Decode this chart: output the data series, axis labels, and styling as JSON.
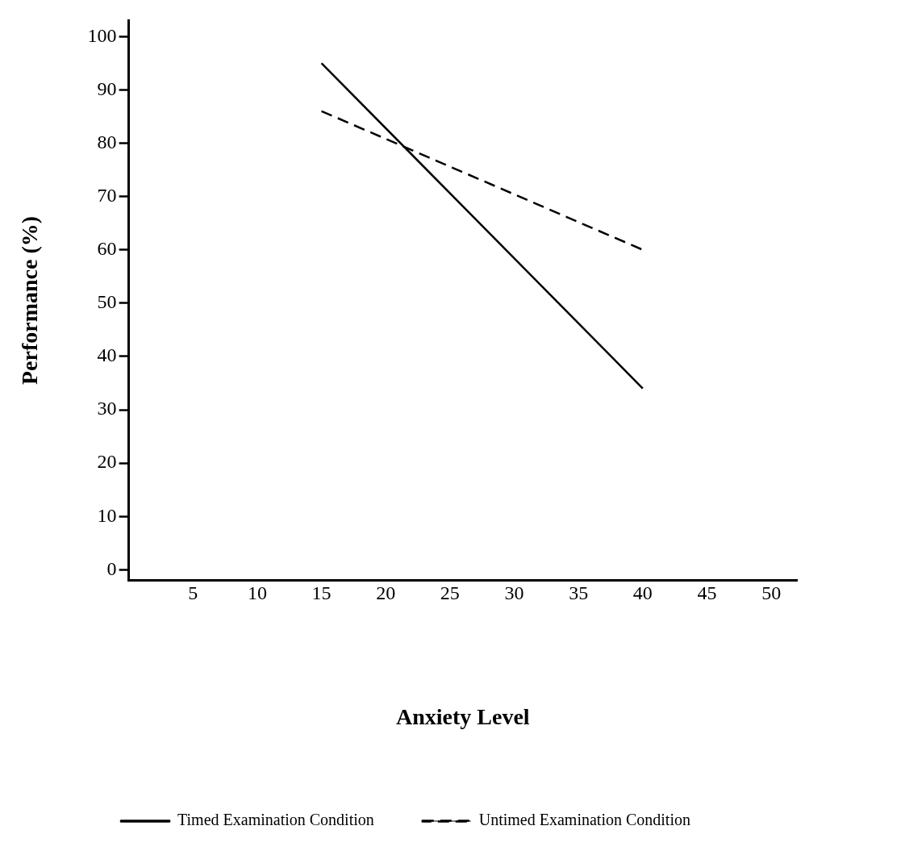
{
  "chart_data": {
    "type": "line",
    "xlabel": "Anxiety Level",
    "ylabel": "Performance (%)",
    "x": [
      15,
      40
    ],
    "xlim": [
      0,
      52
    ],
    "xticks": [
      5,
      10,
      15,
      20,
      25,
      30,
      35,
      40,
      45,
      50
    ],
    "ylim": [
      -2,
      103
    ],
    "yticks": [
      0,
      10,
      20,
      30,
      40,
      50,
      60,
      70,
      80,
      90,
      100
    ],
    "grid": false,
    "legend": "bottom",
    "marker": "none",
    "series": [
      {
        "name": "Timed Examination Condition",
        "color": "#000000",
        "values": [
          95,
          34
        ],
        "line_style": "solid"
      },
      {
        "name": "Untimed Examination Condition",
        "color": "#000000",
        "values": [
          86,
          60
        ],
        "line_style": "dashed"
      }
    ]
  }
}
